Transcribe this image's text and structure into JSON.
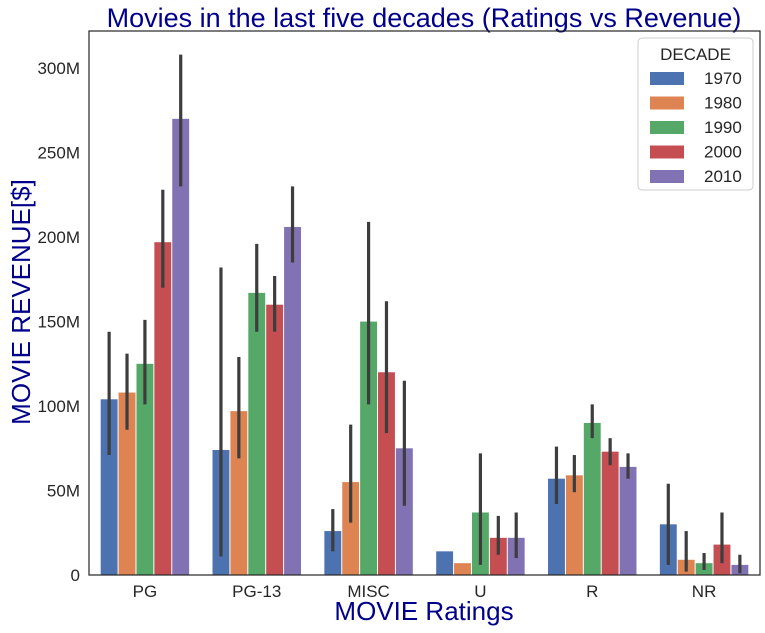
{
  "chart_data": {
    "type": "bar",
    "title": "Movies in the last five decades (Ratings vs Revenue)",
    "xlabel": "MOVIE Ratings",
    "ylabel": "MOVIE REVENUE[$]",
    "categories": [
      "PG",
      "PG-13",
      "MISC",
      "U",
      "R",
      "NR"
    ],
    "ylim": [
      0,
      322
    ],
    "yticks": [
      0,
      50,
      100,
      150,
      200,
      250,
      300
    ],
    "ytick_labels": [
      "0",
      "50M",
      "100M",
      "150M",
      "200M",
      "250M",
      "300M"
    ],
    "legend": {
      "title": "DECADE",
      "position": "top-right"
    },
    "grid": false,
    "series": [
      {
        "name": "1970",
        "color": "#4c72b0",
        "values": [
          104,
          74,
          26,
          14,
          57,
          30
        ],
        "error_low": [
          71,
          11,
          14,
          null,
          42,
          6
        ],
        "error_high": [
          144,
          182,
          39,
          null,
          76,
          54
        ]
      },
      {
        "name": "1980",
        "color": "#dd8452",
        "values": [
          108,
          97,
          55,
          7,
          59,
          9
        ],
        "error_low": [
          86,
          69,
          31,
          null,
          49,
          2
        ],
        "error_high": [
          131,
          129,
          89,
          null,
          71,
          26
        ]
      },
      {
        "name": "1990",
        "color": "#55a868",
        "values": [
          125,
          167,
          150,
          37,
          90,
          7
        ],
        "error_low": [
          101,
          144,
          101,
          6,
          81,
          3
        ],
        "error_high": [
          151,
          196,
          209,
          72,
          101,
          13
        ]
      },
      {
        "name": "2000",
        "color": "#c44e52",
        "values": [
          197,
          160,
          120,
          22,
          73,
          18
        ],
        "error_low": [
          170,
          144,
          84,
          12,
          65,
          7
        ],
        "error_high": [
          228,
          177,
          162,
          35,
          81,
          37
        ]
      },
      {
        "name": "2010",
        "color": "#8172b3",
        "values": [
          270,
          206,
          75,
          22,
          64,
          6
        ],
        "error_low": [
          230,
          185,
          41,
          10,
          57,
          1
        ],
        "error_high": [
          308,
          230,
          115,
          37,
          72,
          12
        ]
      }
    ]
  }
}
